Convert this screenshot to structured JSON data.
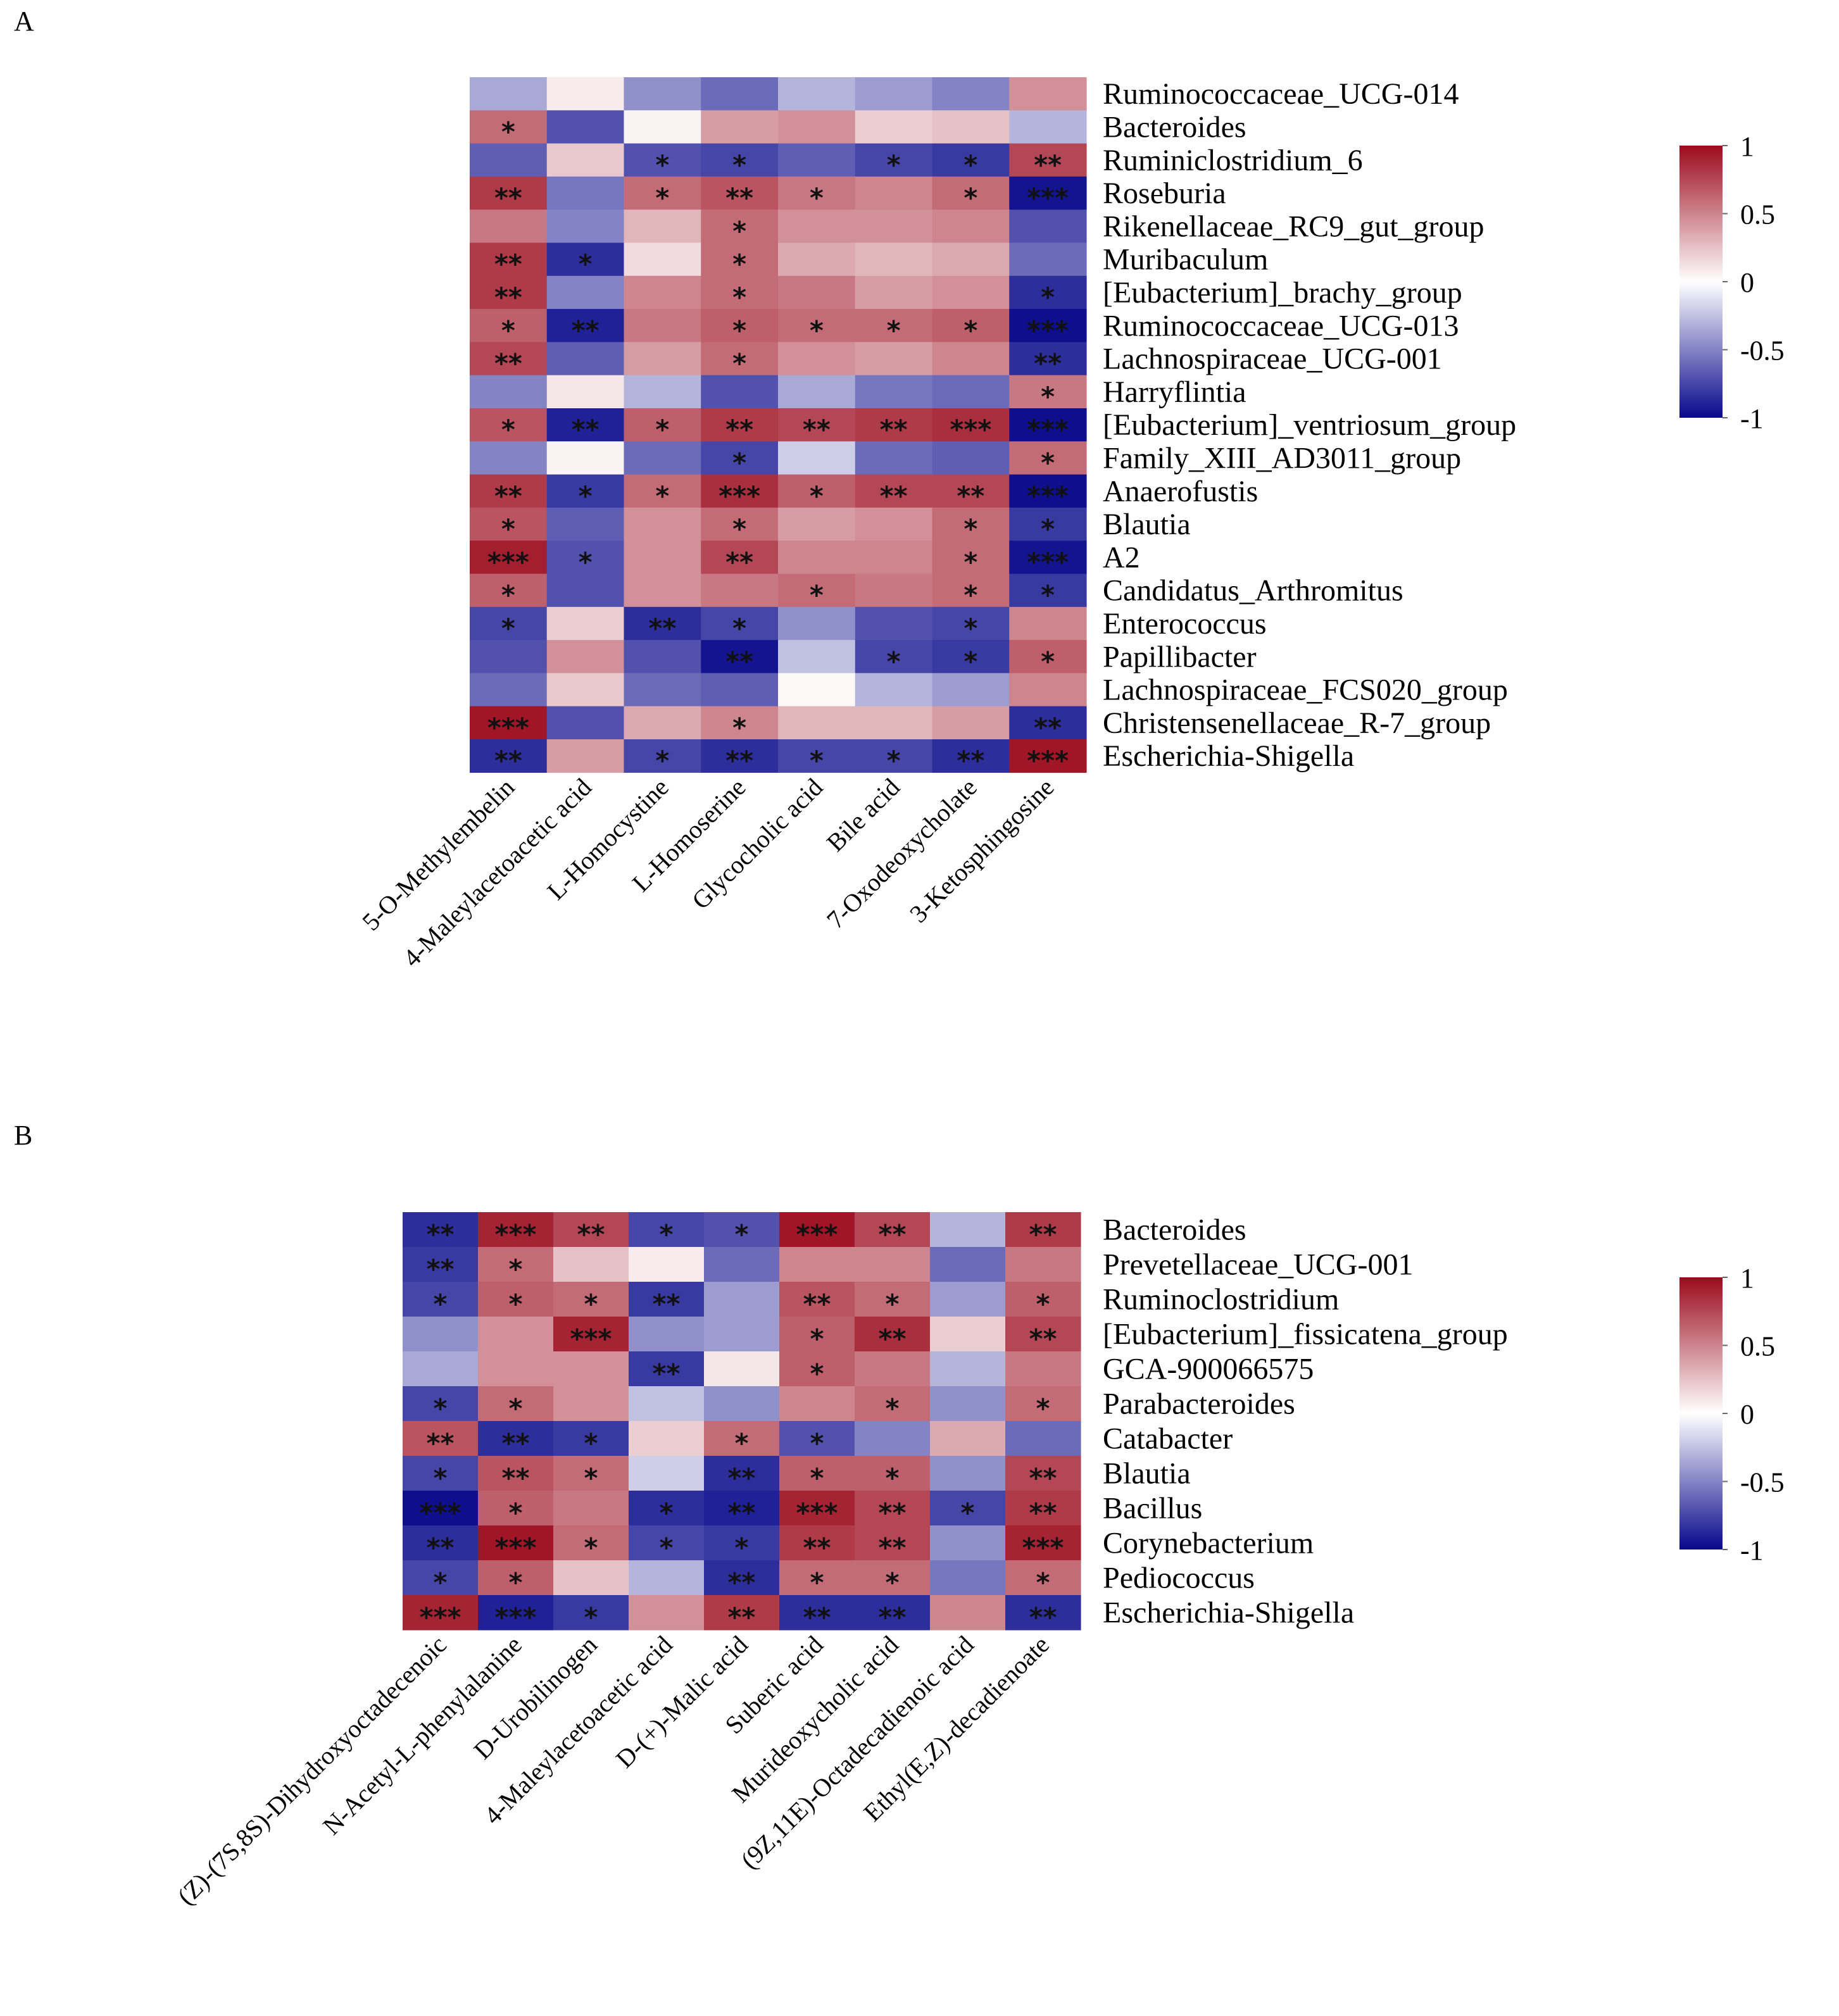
{
  "chart_data": [
    {
      "type": "heatmap",
      "panel": "A",
      "colorbar": {
        "ticks": [
          "1",
          "0.5",
          "0",
          "-0.5",
          "-1"
        ],
        "low": "#08088b",
        "mid": "#ffffff",
        "high": "#9b0a1c"
      },
      "rows": [
        "Ruminococcaceae_UCG-014",
        "Bacteroides",
        "Ruminiclostridium_6",
        "Roseburia",
        "Rikenellaceae_RC9_gut_group",
        "Muribaculum",
        "[Eubacterium]_brachy_group",
        "Ruminococcaceae_UCG-013",
        "Lachnospiraceae_UCG-001",
        "Harryflintia",
        "[Eubacterium]_ventriosum_group",
        "Family_XIII_AD3011_group",
        "Anaerofustis",
        "Blautia",
        "A2",
        "Candidatus_Arthromitus",
        "Enterococcus",
        "Papillibacter",
        "Lachnospiraceae_FCS020_group",
        "Christensenellaceae_R-7_group",
        "Escherichia-Shigella"
      ],
      "columns": [
        "5-O-Methylembelin",
        "4-Maleylacetoacetic acid",
        "L-Homocystine",
        "L-Homoserine",
        "Glycocholic acid",
        "Bile acid",
        "7-Oxodeoxycholate",
        "3-Ketosphingosine"
      ],
      "values": [
        [
          -0.35,
          0.08,
          -0.45,
          -0.6,
          -0.3,
          -0.4,
          -0.5,
          0.45
        ],
        [
          0.6,
          -0.7,
          0.05,
          0.4,
          0.45,
          0.2,
          0.25,
          -0.3
        ],
        [
          -0.65,
          0.22,
          -0.7,
          -0.75,
          -0.65,
          -0.75,
          -0.8,
          0.75
        ],
        [
          0.8,
          -0.55,
          0.6,
          0.7,
          0.55,
          0.5,
          0.6,
          -0.95
        ],
        [
          0.55,
          -0.5,
          0.3,
          0.6,
          0.45,
          0.45,
          0.5,
          -0.7
        ],
        [
          0.8,
          -0.85,
          0.15,
          0.6,
          0.35,
          0.3,
          0.35,
          -0.6
        ],
        [
          0.8,
          -0.5,
          0.5,
          0.6,
          0.55,
          0.4,
          0.45,
          -0.85
        ],
        [
          0.65,
          -0.9,
          0.55,
          0.65,
          0.6,
          0.6,
          0.65,
          -0.97
        ],
        [
          0.75,
          -0.65,
          0.4,
          0.6,
          0.45,
          0.4,
          0.5,
          -0.85
        ],
        [
          -0.5,
          0.1,
          -0.3,
          -0.7,
          -0.35,
          -0.55,
          -0.6,
          0.55
        ],
        [
          0.7,
          -0.9,
          0.65,
          0.8,
          0.75,
          0.8,
          0.85,
          -0.97
        ],
        [
          -0.5,
          0.05,
          -0.6,
          -0.75,
          -0.2,
          -0.6,
          -0.65,
          0.6
        ],
        [
          0.8,
          -0.8,
          0.6,
          0.85,
          0.65,
          0.75,
          0.75,
          -0.97
        ],
        [
          0.7,
          -0.65,
          0.45,
          0.6,
          0.4,
          0.45,
          0.6,
          -0.8
        ],
        [
          0.92,
          -0.7,
          0.45,
          0.75,
          0.5,
          0.5,
          0.6,
          -0.95
        ],
        [
          0.65,
          -0.7,
          0.45,
          0.55,
          0.6,
          0.55,
          0.6,
          -0.8
        ],
        [
          -0.75,
          0.2,
          -0.85,
          -0.75,
          -0.45,
          -0.7,
          -0.75,
          0.5
        ],
        [
          -0.7,
          0.45,
          -0.7,
          -0.95,
          -0.25,
          -0.75,
          -0.8,
          0.65
        ],
        [
          -0.6,
          0.22,
          -0.6,
          -0.65,
          0.03,
          -0.3,
          -0.4,
          0.5
        ],
        [
          0.95,
          -0.7,
          0.35,
          0.5,
          0.3,
          0.3,
          0.4,
          -0.85
        ],
        [
          -0.85,
          0.4,
          -0.75,
          -0.85,
          -0.75,
          -0.75,
          -0.85,
          0.95
        ]
      ],
      "significance": [
        [
          "",
          "",
          "",
          "",
          "",
          "",
          "",
          ""
        ],
        [
          "*",
          "",
          "",
          "",
          "",
          "",
          "",
          ""
        ],
        [
          "",
          "",
          "*",
          "*",
          "",
          "*",
          "*",
          "**"
        ],
        [
          "**",
          "",
          "*",
          "**",
          "*",
          "",
          "*",
          "***"
        ],
        [
          "",
          "",
          "",
          "*",
          "",
          "",
          "",
          ""
        ],
        [
          "**",
          "*",
          "",
          "*",
          "",
          "",
          "",
          ""
        ],
        [
          "**",
          "",
          "",
          "*",
          "",
          "",
          "",
          "*"
        ],
        [
          "*",
          "**",
          "",
          "*",
          "*",
          "*",
          "*",
          "***"
        ],
        [
          "**",
          "",
          "",
          "*",
          "",
          "",
          "",
          "**"
        ],
        [
          "",
          "",
          "",
          "",
          "",
          "",
          "",
          "*"
        ],
        [
          "*",
          "**",
          "*",
          "**",
          "**",
          "**",
          "***",
          "***"
        ],
        [
          "",
          "",
          "",
          "*",
          "",
          "",
          "",
          "*"
        ],
        [
          "**",
          "*",
          "*",
          "***",
          "*",
          "**",
          "**",
          "***"
        ],
        [
          "*",
          "",
          "",
          "*",
          "",
          "",
          "*",
          "*"
        ],
        [
          "***",
          "*",
          "",
          "**",
          "",
          "",
          "*",
          "***"
        ],
        [
          "*",
          "",
          "",
          "",
          "*",
          "",
          "*",
          "*"
        ],
        [
          "*",
          "",
          "**",
          "*",
          "",
          "",
          "*",
          ""
        ],
        [
          "",
          "",
          "",
          "**",
          "",
          "*",
          "*",
          "*"
        ],
        [
          "",
          "",
          "",
          "",
          "",
          "",
          "",
          ""
        ],
        [
          "***",
          "",
          "",
          "*",
          "",
          "",
          "",
          "**"
        ],
        [
          "**",
          "",
          "*",
          "**",
          "*",
          "*",
          "**",
          "***"
        ]
      ]
    },
    {
      "type": "heatmap",
      "panel": "B",
      "colorbar": {
        "ticks": [
          "1",
          "0.5",
          "0",
          "-0.5",
          "-1"
        ],
        "low": "#08088b",
        "mid": "#ffffff",
        "high": "#9b0a1c"
      },
      "rows": [
        "Bacteroides",
        "Prevetellaceae_UCG-001",
        "Ruminoclostridium",
        "[Eubacterium]_fissicatena_group",
        "GCA-900066575",
        "Parabacteroides",
        "Catabacter",
        "Blautia",
        "Bacillus",
        "Corynebacterium",
        "Pediococcus",
        "Escherichia-Shigella"
      ],
      "columns": [
        "(Z)-(7S,8S)-Dihydroxyoctadecenoic",
        "N-Acetyl-L-phenylalanine",
        "D-Urobilinogen",
        "4-Maleylacetoacetic acid",
        "D-(+)-Malic acid",
        "Suberic acid",
        "Murideoxycholic acid",
        "(9Z,11E)-Octadecadienoic acid",
        "Ethyl(E,Z)-decadienoate"
      ],
      "values": [
        [
          -0.85,
          0.9,
          0.75,
          -0.75,
          -0.7,
          0.95,
          0.75,
          -0.3,
          0.8
        ],
        [
          -0.8,
          0.6,
          0.25,
          0.08,
          -0.6,
          0.5,
          0.5,
          -0.6,
          0.55
        ],
        [
          -0.75,
          0.65,
          0.6,
          -0.8,
          -0.4,
          0.7,
          0.6,
          -0.4,
          0.65
        ],
        [
          -0.45,
          0.45,
          0.9,
          -0.45,
          -0.4,
          0.65,
          0.85,
          0.2,
          0.75
        ],
        [
          -0.35,
          0.45,
          0.45,
          -0.8,
          0.1,
          0.65,
          0.55,
          -0.3,
          0.55
        ],
        [
          -0.75,
          0.6,
          0.45,
          -0.25,
          -0.45,
          0.5,
          0.6,
          -0.45,
          0.6
        ],
        [
          0.7,
          -0.85,
          -0.8,
          0.2,
          0.6,
          -0.7,
          -0.5,
          0.35,
          -0.6
        ],
        [
          -0.75,
          0.7,
          0.6,
          -0.2,
          -0.85,
          0.65,
          0.65,
          -0.45,
          0.75
        ],
        [
          -0.97,
          0.65,
          0.55,
          -0.85,
          -0.9,
          0.9,
          0.75,
          -0.75,
          0.8
        ],
        [
          -0.85,
          0.95,
          0.6,
          -0.75,
          -0.8,
          0.8,
          0.75,
          -0.45,
          0.9
        ],
        [
          -0.75,
          0.65,
          0.25,
          -0.3,
          -0.85,
          0.6,
          0.6,
          -0.55,
          0.6
        ],
        [
          0.9,
          -0.9,
          -0.8,
          0.45,
          0.8,
          -0.85,
          -0.85,
          0.5,
          -0.85
        ]
      ],
      "significance": [
        [
          "**",
          "***",
          "**",
          "*",
          "*",
          "***",
          "**",
          "",
          "**"
        ],
        [
          "**",
          "*",
          "",
          "",
          "",
          "",
          "",
          "",
          ""
        ],
        [
          "*",
          "*",
          "*",
          "**",
          "",
          "**",
          "*",
          "",
          "*"
        ],
        [
          "",
          "",
          "***",
          "",
          "",
          "*",
          "**",
          "",
          "**"
        ],
        [
          "",
          "",
          "",
          "**",
          "",
          "*",
          "",
          "",
          ""
        ],
        [
          "*",
          "*",
          "",
          "",
          "",
          "",
          "*",
          "",
          "*"
        ],
        [
          "**",
          "**",
          "*",
          "",
          "*",
          "*",
          "",
          "",
          ""
        ],
        [
          "*",
          "**",
          "*",
          "",
          "**",
          "*",
          "*",
          "",
          "**"
        ],
        [
          "***",
          "*",
          "",
          "*",
          "**",
          "***",
          "**",
          "*",
          "**"
        ],
        [
          "**",
          "***",
          "*",
          "*",
          "*",
          "**",
          "**",
          "",
          "***"
        ],
        [
          "*",
          "*",
          "",
          "",
          "**",
          "*",
          "*",
          "",
          "*"
        ],
        [
          "***",
          "***",
          "*",
          "",
          "**",
          "**",
          "**",
          "",
          "**"
        ]
      ]
    }
  ]
}
